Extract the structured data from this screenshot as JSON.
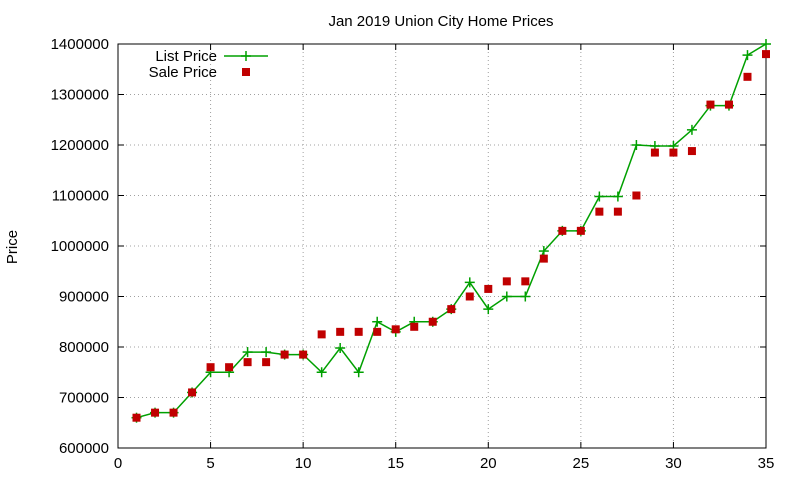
{
  "chart_data": {
    "type": "line",
    "title": "Jan 2019 Union City Home Prices",
    "xlabel": "",
    "ylabel": "Price",
    "xlim": [
      0,
      35
    ],
    "ylim": [
      600000,
      1400000
    ],
    "x_ticks": [
      0,
      5,
      10,
      15,
      20,
      25,
      30,
      35
    ],
    "y_ticks": [
      600000,
      700000,
      800000,
      900000,
      1000000,
      1100000,
      1200000,
      1300000,
      1400000
    ],
    "grid": true,
    "legend_position": "top-left",
    "colors": {
      "list": "#00a000",
      "sale": "#c00000"
    },
    "series": [
      {
        "name": "List Price",
        "style": "line-with-plus-markers",
        "x": [
          1,
          2,
          3,
          4,
          5,
          6,
          7,
          8,
          9,
          10,
          11,
          12,
          13,
          14,
          15,
          16,
          17,
          18,
          19,
          20,
          21,
          22,
          23,
          24,
          25,
          26,
          27,
          28,
          29,
          30,
          31,
          32,
          33,
          34,
          35
        ],
        "values": [
          660000,
          670000,
          670000,
          710000,
          750000,
          750000,
          790000,
          790000,
          785000,
          785000,
          750000,
          798000,
          750000,
          850000,
          830000,
          850000,
          850000,
          875000,
          928000,
          875000,
          900000,
          900000,
          990000,
          1030000,
          1030000,
          1098000,
          1098000,
          1200000,
          1198000,
          1198000,
          1230000,
          1278000,
          1278000,
          1378000,
          1400000
        ]
      },
      {
        "name": "Sale Price",
        "style": "square-markers",
        "x": [
          1,
          2,
          3,
          4,
          5,
          6,
          7,
          8,
          9,
          10,
          11,
          12,
          13,
          14,
          15,
          16,
          17,
          18,
          19,
          20,
          21,
          22,
          23,
          24,
          25,
          26,
          27,
          28,
          29,
          30,
          31,
          32,
          33,
          34,
          35
        ],
        "values": [
          660000,
          670000,
          670000,
          710000,
          760000,
          760000,
          770000,
          770000,
          785000,
          785000,
          825000,
          830000,
          830000,
          830000,
          835000,
          840000,
          850000,
          875000,
          900000,
          915000,
          930000,
          930000,
          975000,
          1030000,
          1030000,
          1068000,
          1068000,
          1100000,
          1185000,
          1185000,
          1188000,
          1280000,
          1280000,
          1335000,
          1380000
        ]
      }
    ]
  }
}
